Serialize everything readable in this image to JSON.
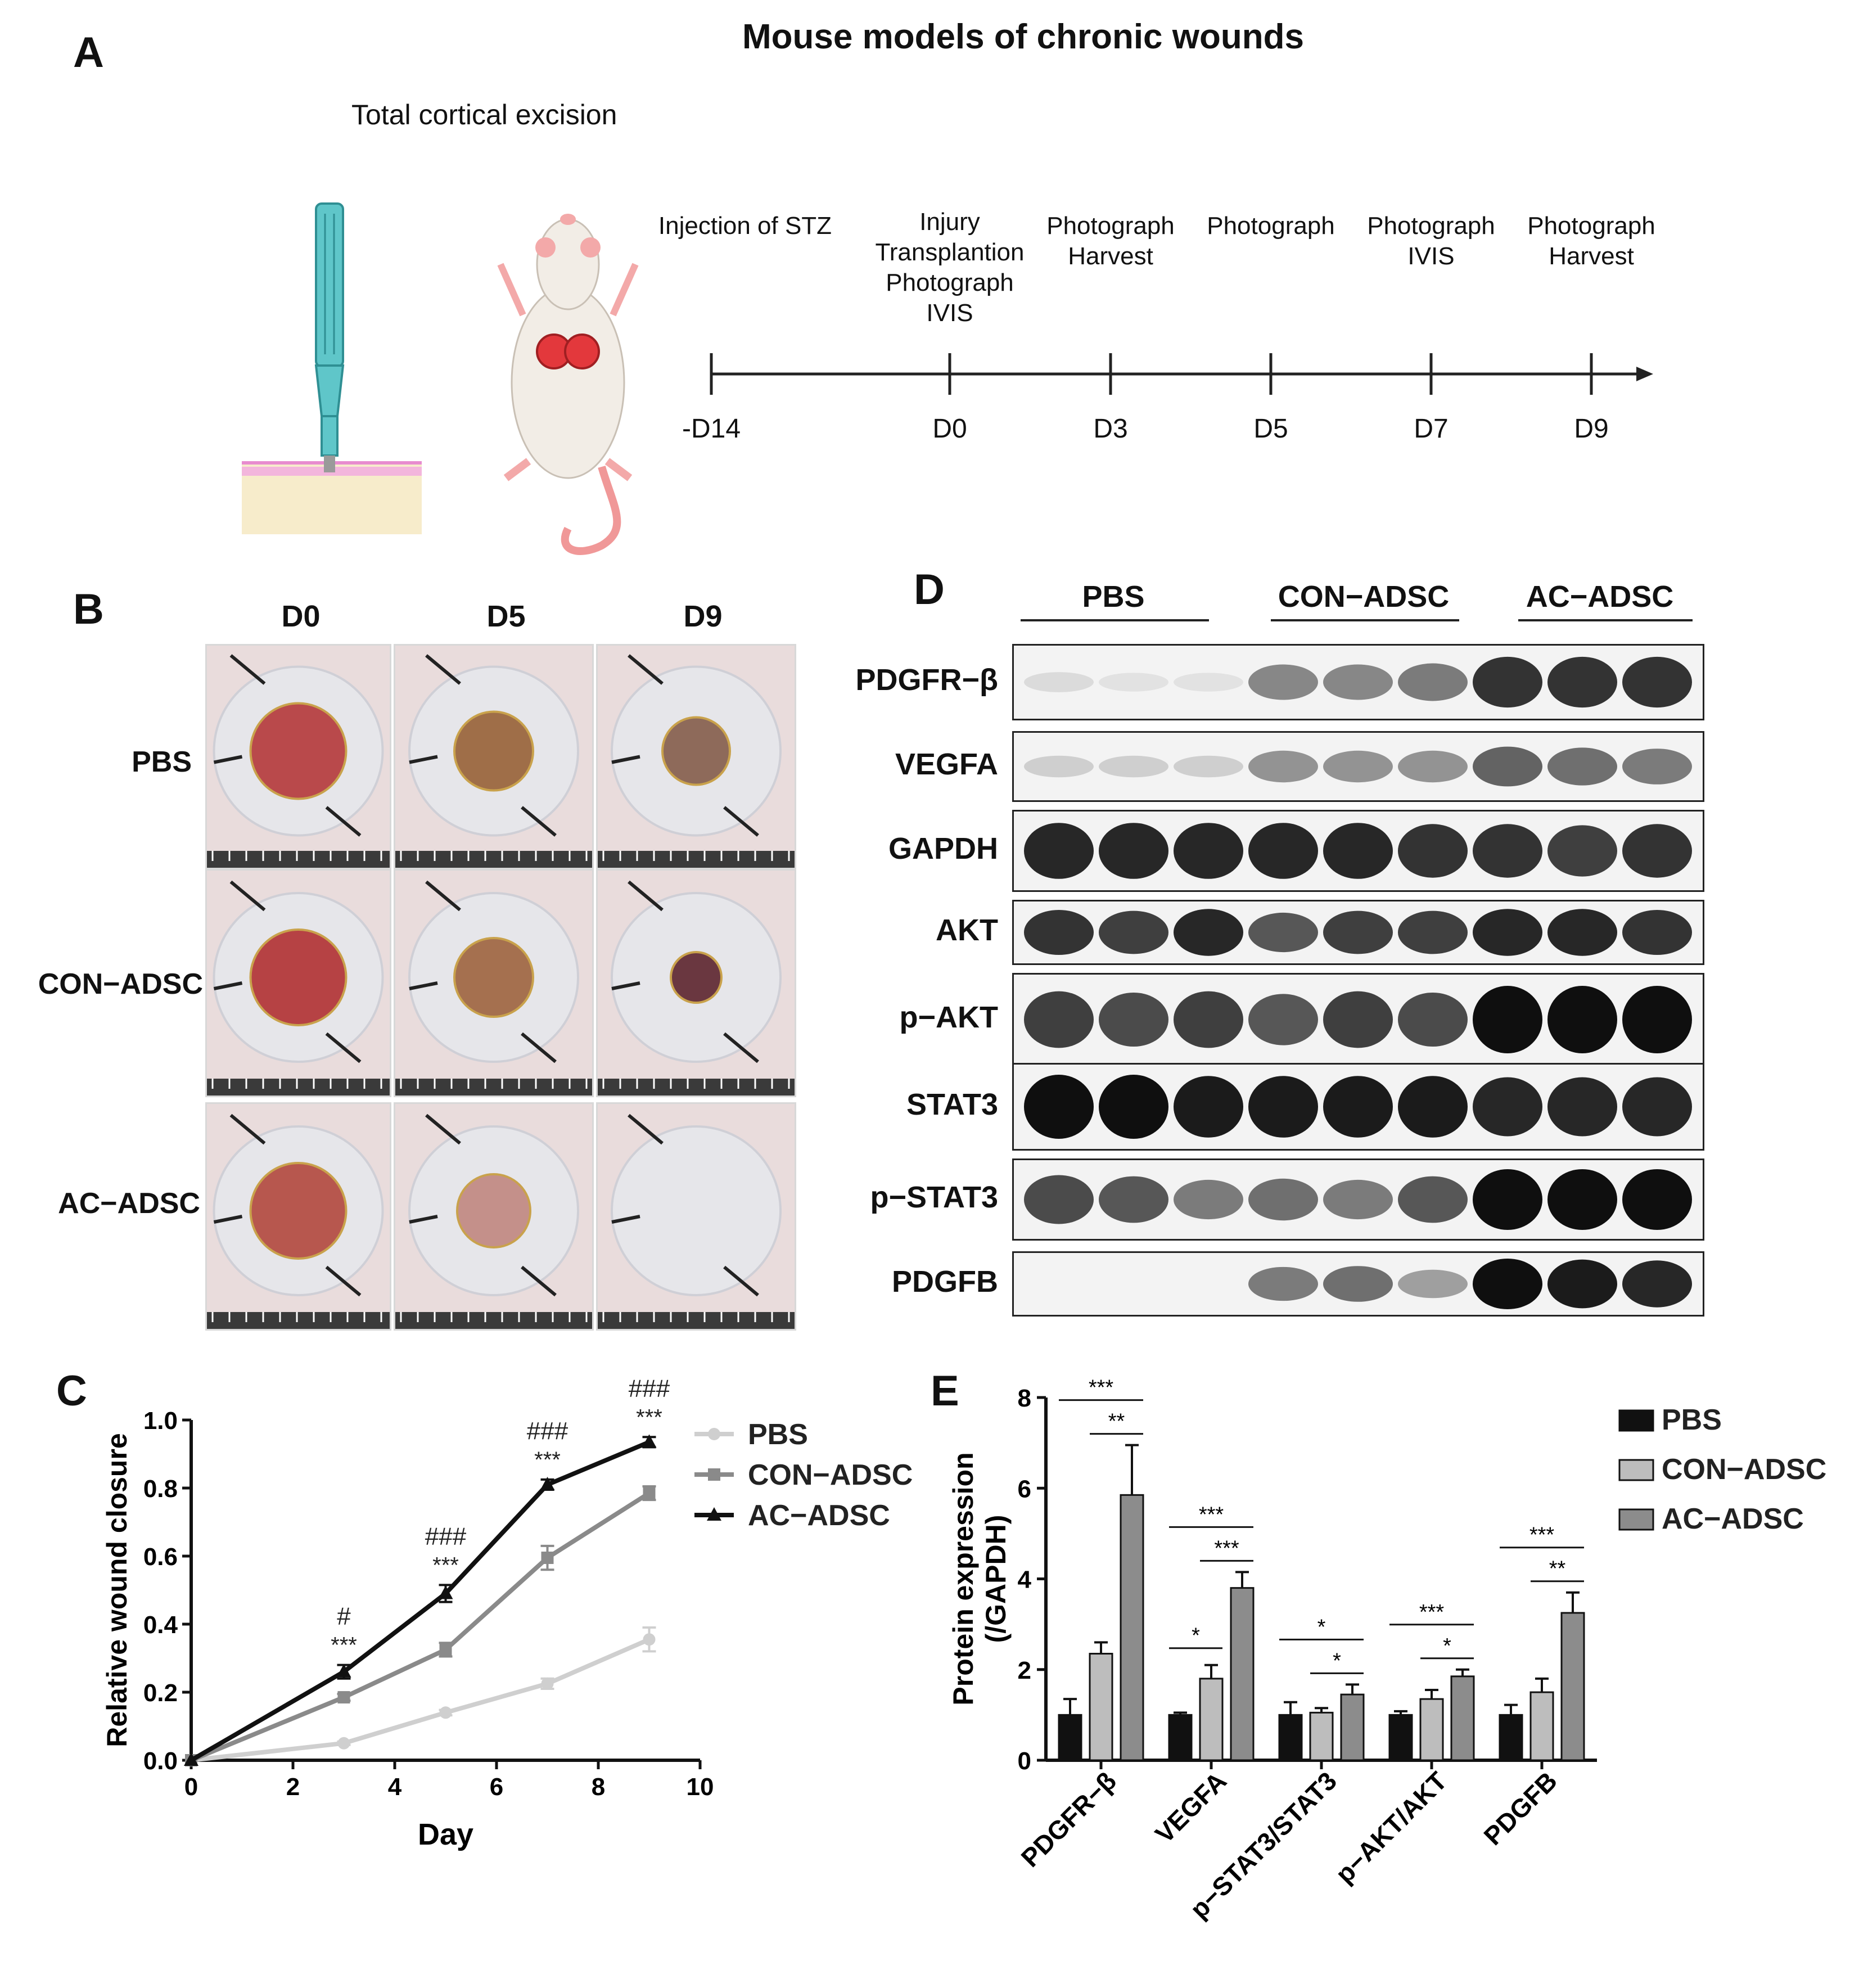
{
  "panelA": {
    "letter": "A",
    "title": "Mouse models of chronic wounds",
    "subtitle": "Total cortical excision",
    "timeline": [
      {
        "day": "-D14",
        "label": "Injection of STZ"
      },
      {
        "day": "D0",
        "label": "Injury\nTransplantion\nPhotograph\nIVIS"
      },
      {
        "day": "D3",
        "label": "Photograph\nHarvest"
      },
      {
        "day": "D5",
        "label": "Photograph"
      },
      {
        "day": "D7",
        "label": "Photograph\nIVIS"
      },
      {
        "day": "D9",
        "label": "Photograph\nHarvest"
      }
    ]
  },
  "panelB": {
    "letter": "B",
    "columns": [
      "D0",
      "D5",
      "D9"
    ],
    "rows": [
      "PBS",
      "CON−ADSC",
      "AC−ADSC"
    ]
  },
  "panelD": {
    "letter": "D",
    "groups": [
      "PBS",
      "CON−ADSC",
      "AC−ADSC"
    ],
    "proteins": [
      "PDGFR−β",
      "VEGFA",
      "GAPDH",
      "AKT",
      "p−AKT",
      "STAT3",
      "p−STAT3",
      "PDGFB"
    ]
  },
  "chart_data": [
    {
      "panel": "C",
      "letter": "C",
      "type": "line",
      "xlabel": "Day",
      "ylabel": "Relative wound closure",
      "xlim": [
        0,
        10
      ],
      "ylim": [
        0,
        1.0
      ],
      "xticks": [
        "0",
        "2",
        "4",
        "6",
        "8",
        "10"
      ],
      "yticks": [
        "0.0",
        "0.2",
        "0.4",
        "0.6",
        "0.8",
        "1.0"
      ],
      "x": [
        0,
        3,
        5,
        7,
        9
      ],
      "series": [
        {
          "name": "PBS",
          "color": "#cfcfcf",
          "marker": "circle",
          "values": [
            0,
            0.05,
            0.14,
            0.225,
            0.355
          ],
          "errors": [
            0,
            0.005,
            0.008,
            0.015,
            0.035
          ]
        },
        {
          "name": "CON−ADSC",
          "color": "#8a8a8a",
          "marker": "square",
          "values": [
            0,
            0.185,
            0.325,
            0.595,
            0.785
          ],
          "errors": [
            0,
            0.01,
            0.02,
            0.035,
            0.02
          ]
        },
        {
          "name": "AC−ADSC",
          "color": "#111111",
          "marker": "triangle",
          "values": [
            0,
            0.26,
            0.49,
            0.81,
            0.935
          ],
          "errors": [
            0,
            0.02,
            0.025,
            0.015,
            0.015
          ]
        }
      ],
      "annotations": [
        {
          "x": 3,
          "sig": "***",
          "hash": "#"
        },
        {
          "x": 5,
          "sig": "***",
          "hash": "###"
        },
        {
          "x": 7,
          "sig": "***",
          "hash": "###"
        },
        {
          "x": 9,
          "sig": "***",
          "hash": "###"
        }
      ],
      "legend": "top-right"
    },
    {
      "panel": "E",
      "letter": "E",
      "type": "bar",
      "ylabel": "Protein expression\n(/GAPDH)",
      "ylim": [
        0,
        8
      ],
      "yticks": [
        "0",
        "2",
        "4",
        "6",
        "8"
      ],
      "categories": [
        "PDGFR−β",
        "VEGFA",
        "p−STAT3/STAT3",
        "p−AKT/AKT",
        "PDGFB"
      ],
      "series": [
        {
          "name": "PBS",
          "color": "#111111",
          "values": [
            1.0,
            1.0,
            1.0,
            1.0,
            1.0
          ],
          "errors": [
            0.35,
            0.05,
            0.28,
            0.08,
            0.22
          ]
        },
        {
          "name": "CON−ADSC",
          "color": "#bdbdbd",
          "values": [
            2.35,
            1.8,
            1.05,
            1.35,
            1.5
          ],
          "errors": [
            0.25,
            0.3,
            0.1,
            0.2,
            0.3
          ]
        },
        {
          "name": "AC−ADSC",
          "color": "#8c8c8c",
          "values": [
            5.85,
            3.8,
            1.45,
            1.85,
            3.25
          ],
          "errors": [
            1.1,
            0.35,
            0.22,
            0.15,
            0.45
          ]
        }
      ],
      "significance": [
        {
          "cat": 0,
          "pairs": [
            {
              "a": 0,
              "b": 2,
              "label": "***"
            },
            {
              "a": 1,
              "b": 2,
              "label": "**"
            }
          ]
        },
        {
          "cat": 1,
          "pairs": [
            {
              "a": 0,
              "b": 2,
              "label": "***"
            },
            {
              "a": 1,
              "b": 2,
              "label": "***"
            },
            {
              "a": 0,
              "b": 1,
              "label": "*"
            }
          ]
        },
        {
          "cat": 2,
          "pairs": [
            {
              "a": 0,
              "b": 2,
              "label": "*"
            },
            {
              "a": 1,
              "b": 2,
              "label": "*"
            }
          ]
        },
        {
          "cat": 3,
          "pairs": [
            {
              "a": 0,
              "b": 2,
              "label": "***"
            },
            {
              "a": 1,
              "b": 2,
              "label": "*"
            }
          ]
        },
        {
          "cat": 4,
          "pairs": [
            {
              "a": 0,
              "b": 2,
              "label": "***"
            },
            {
              "a": 1,
              "b": 2,
              "label": "**"
            }
          ]
        }
      ],
      "legend": "top-right"
    }
  ]
}
